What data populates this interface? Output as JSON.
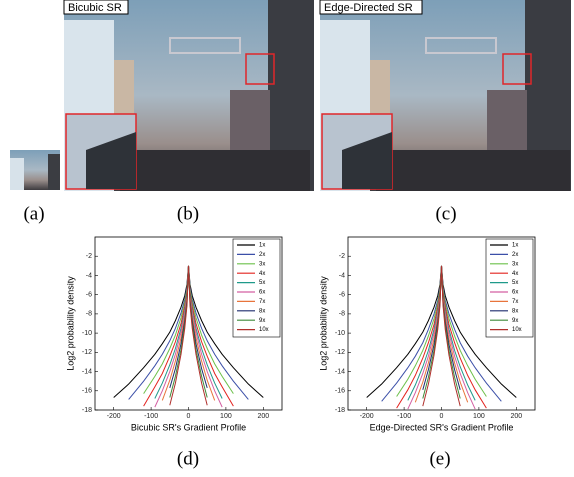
{
  "figure": {
    "image_labels": [
      "Bicubic SR",
      "Edge-Directed SR"
    ],
    "panel_labels": [
      "(a)",
      "(b)",
      "(c)",
      "(d)",
      "(e)"
    ]
  },
  "chart_data": [
    {
      "type": "line",
      "x_label": "Bicubic SR's Gradient Profile",
      "y_label": "Log2  probability density",
      "x": [
        -200,
        -160,
        -120,
        -90,
        -70,
        -50,
        -35,
        -20,
        -10,
        -4,
        0,
        4,
        10,
        20,
        35,
        50,
        70,
        90,
        120,
        160,
        200
      ],
      "xlim": [
        -250,
        250
      ],
      "ylim": [
        -18,
        0
      ],
      "xticks": [
        -200,
        -100,
        0,
        100,
        200
      ],
      "yticks": [
        -2,
        -4,
        -6,
        -8,
        -10,
        -12,
        -14,
        -16,
        -18
      ],
      "series": [
        {
          "name": "1x",
          "color": "#000000",
          "values": [
            -16.7,
            -15.3,
            -13.6,
            -12.2,
            -11.1,
            -9.9,
            -8.7,
            -7.3,
            -6.1,
            -4.9,
            -3,
            -4.9,
            -6.1,
            -7.3,
            -8.7,
            -9.9,
            -11.1,
            -12.2,
            -13.6,
            -15.3,
            -16.7
          ]
        },
        {
          "name": "2x",
          "color": "#3b4fa8",
          "values": [
            null,
            -16.9,
            -15.0,
            -13.4,
            -12.2,
            -10.8,
            -9.5,
            -7.9,
            -6.5,
            -5.2,
            -3,
            -5.2,
            -6.5,
            -7.9,
            -9.5,
            -10.8,
            -12.2,
            -13.4,
            -15.0,
            -16.9,
            null
          ]
        },
        {
          "name": "3x",
          "color": "#6cc04a",
          "values": [
            null,
            null,
            -16.3,
            -14.5,
            -13.2,
            -11.6,
            -10.2,
            -8.4,
            -6.8,
            -5.4,
            -3,
            -5.4,
            -6.8,
            -8.4,
            -10.2,
            -11.6,
            -13.2,
            -14.5,
            -16.3,
            null,
            null
          ]
        },
        {
          "name": "4x",
          "color": "#e3231f",
          "values": [
            null,
            null,
            -17.6,
            -15.6,
            -14.2,
            -12.4,
            -10.9,
            -9.0,
            -7.2,
            -5.7,
            -3,
            -5.7,
            -7.2,
            -9.0,
            -10.9,
            -12.4,
            -14.2,
            -15.6,
            -17.6,
            null,
            null
          ]
        },
        {
          "name": "5x",
          "color": "#1f9a8a",
          "values": [
            null,
            null,
            null,
            -16.8,
            -15.2,
            -13.3,
            -11.6,
            -9.5,
            -7.6,
            -5.9,
            -3,
            -5.9,
            -7.6,
            -9.5,
            -11.6,
            -13.3,
            -15.2,
            -16.8,
            null,
            null,
            null
          ]
        },
        {
          "name": "6x",
          "color": "#d35fa2",
          "values": [
            null,
            null,
            null,
            -17.7,
            -16.0,
            -14.0,
            -12.2,
            -9.9,
            -7.9,
            -6.1,
            -3,
            -6.1,
            -7.9,
            -9.9,
            -12.2,
            -14.0,
            -16.0,
            -17.7,
            null,
            null,
            null
          ]
        },
        {
          "name": "7x",
          "color": "#e8743b",
          "values": [
            null,
            null,
            null,
            null,
            -17.0,
            -14.9,
            -12.9,
            -10.5,
            -8.3,
            -6.4,
            -3,
            -6.4,
            -8.3,
            -10.5,
            -12.9,
            -14.9,
            -17.0,
            null,
            null,
            null,
            null
          ]
        },
        {
          "name": "8x",
          "color": "#1e2c6e",
          "values": [
            null,
            null,
            null,
            null,
            null,
            -15.7,
            -13.7,
            -11.1,
            -8.7,
            -6.6,
            -3,
            -6.6,
            -8.7,
            -11.1,
            -13.7,
            -15.7,
            null,
            null,
            null,
            null,
            null
          ]
        },
        {
          "name": "9x",
          "color": "#3f8a3a",
          "values": [
            null,
            null,
            null,
            null,
            null,
            -16.7,
            -14.5,
            -11.7,
            -9.1,
            -6.9,
            -3,
            -6.9,
            -9.1,
            -11.7,
            -14.5,
            -16.7,
            null,
            null,
            null,
            null,
            null
          ]
        },
        {
          "name": "10x",
          "color": "#b0302c",
          "values": [
            null,
            null,
            null,
            null,
            null,
            -17.5,
            -15.2,
            -12.2,
            -9.5,
            -7.1,
            -3,
            -7.1,
            -9.5,
            -12.2,
            -15.2,
            -17.5,
            null,
            null,
            null,
            null,
            null
          ]
        }
      ]
    },
    {
      "type": "line",
      "x_label": "Edge-Directed SR's Gradient Profile",
      "y_label": "Log2  probability density",
      "x": [
        -200,
        -160,
        -120,
        -90,
        -70,
        -50,
        -35,
        -20,
        -10,
        -4,
        0,
        4,
        10,
        20,
        35,
        50,
        70,
        90,
        120,
        160,
        200
      ],
      "xlim": [
        -250,
        250
      ],
      "ylim": [
        -18,
        0
      ],
      "xticks": [
        -200,
        -100,
        0,
        100,
        200
      ],
      "yticks": [
        -2,
        -4,
        -6,
        -8,
        -10,
        -12,
        -14,
        -16,
        -18
      ],
      "series": [
        {
          "name": "1x",
          "color": "#000000",
          "values": [
            -16.7,
            -15.3,
            -13.6,
            -12.2,
            -11.1,
            -9.9,
            -8.7,
            -7.3,
            -6.1,
            -4.9,
            -3,
            -4.9,
            -6.1,
            -7.3,
            -8.7,
            -9.9,
            -11.1,
            -12.2,
            -13.6,
            -15.3,
            -16.7
          ]
        },
        {
          "name": "2x",
          "color": "#3b4fa8",
          "values": [
            null,
            -17.1,
            -15.2,
            -13.6,
            -12.4,
            -11.0,
            -9.6,
            -8.0,
            -6.6,
            -5.2,
            -3,
            -5.2,
            -6.6,
            -8.0,
            -9.6,
            -11.0,
            -12.4,
            -13.6,
            -15.2,
            -17.1,
            null
          ]
        },
        {
          "name": "3x",
          "color": "#6cc04a",
          "values": [
            null,
            null,
            -16.6,
            -14.8,
            -13.4,
            -11.8,
            -10.3,
            -8.5,
            -6.9,
            -5.4,
            -3,
            -5.4,
            -6.9,
            -8.5,
            -10.3,
            -11.8,
            -13.4,
            -14.8,
            -16.6,
            null,
            null
          ]
        },
        {
          "name": "4x",
          "color": "#e3231f",
          "values": [
            null,
            null,
            -17.8,
            -15.9,
            -14.4,
            -12.6,
            -11.0,
            -9.1,
            -7.3,
            -5.7,
            -3,
            -5.7,
            -7.3,
            -9.1,
            -11.0,
            -12.6,
            -14.4,
            -15.9,
            -17.8,
            null,
            null
          ]
        },
        {
          "name": "5x",
          "color": "#1f9a8a",
          "values": [
            null,
            null,
            null,
            -17.0,
            -15.4,
            -13.5,
            -11.8,
            -9.6,
            -7.7,
            -6.0,
            -3,
            -6.0,
            -7.7,
            -9.6,
            -11.8,
            -13.5,
            -15.4,
            -17.0,
            null,
            null,
            null
          ]
        },
        {
          "name": "6x",
          "color": "#d35fa2",
          "values": [
            null,
            null,
            null,
            -17.9,
            -16.2,
            -14.2,
            -12.4,
            -10.0,
            -8.0,
            -6.2,
            -3,
            -6.2,
            -8.0,
            -10.0,
            -12.4,
            -14.2,
            -16.2,
            -17.9,
            null,
            null,
            null
          ]
        },
        {
          "name": "7x",
          "color": "#e8743b",
          "values": [
            null,
            null,
            null,
            null,
            -17.2,
            -15.1,
            -13.1,
            -10.6,
            -8.4,
            -6.4,
            -3,
            -6.4,
            -8.4,
            -10.6,
            -13.1,
            -15.1,
            -17.2,
            null,
            null,
            null,
            null
          ]
        },
        {
          "name": "8x",
          "color": "#1e2c6e",
          "values": [
            null,
            null,
            null,
            null,
            null,
            -15.9,
            -13.8,
            -11.2,
            -8.8,
            -6.7,
            -3,
            -6.7,
            -8.8,
            -11.2,
            -13.8,
            -15.9,
            null,
            null,
            null,
            null,
            null
          ]
        },
        {
          "name": "9x",
          "color": "#3f8a3a",
          "values": [
            null,
            null,
            null,
            null,
            null,
            -16.8,
            -14.6,
            -11.8,
            -9.2,
            -6.9,
            -3,
            -6.9,
            -9.2,
            -11.8,
            -14.6,
            -16.8,
            null,
            null,
            null,
            null,
            null
          ]
        },
        {
          "name": "10x",
          "color": "#b0302c",
          "values": [
            null,
            null,
            null,
            null,
            null,
            -17.6,
            -15.3,
            -12.3,
            -9.6,
            -7.1,
            -3,
            -7.1,
            -9.6,
            -12.3,
            -15.3,
            -17.6,
            null,
            null,
            null,
            null,
            null
          ]
        }
      ]
    }
  ]
}
